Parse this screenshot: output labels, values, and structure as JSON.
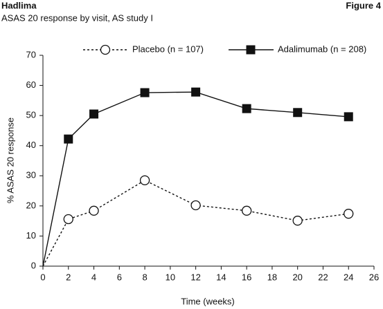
{
  "header": {
    "title": "Hadlima",
    "figure": "Figure 4",
    "subtitle": "ASAS 20 response by visit, AS study I"
  },
  "chart_data": {
    "type": "line",
    "y_label": "% ASAS 20 response",
    "x_label": "Time (weeks)",
    "x": [
      0,
      2,
      4,
      8,
      12,
      16,
      20,
      24
    ],
    "series": [
      {
        "name": "Placebo (n = 107)",
        "color": "#111111",
        "dash": true,
        "marker": "circle",
        "values": [
          0,
          15.6,
          18.4,
          28.5,
          20.2,
          18.4,
          15.1,
          17.4
        ]
      },
      {
        "name": "Adalimumab (n = 208)",
        "color": "#111111",
        "dash": false,
        "marker": "square",
        "values": [
          0,
          42.2,
          50.5,
          57.6,
          57.8,
          52.3,
          51.0,
          49.6
        ]
      }
    ],
    "xlim": [
      0,
      26
    ],
    "xticks": [
      0,
      2,
      4,
      6,
      8,
      10,
      12,
      14,
      16,
      18,
      20,
      22,
      24,
      26
    ],
    "ylim": [
      0,
      70
    ],
    "yticks": [
      0,
      10,
      20,
      30,
      40,
      50,
      60,
      70
    ],
    "legend": "top"
  }
}
